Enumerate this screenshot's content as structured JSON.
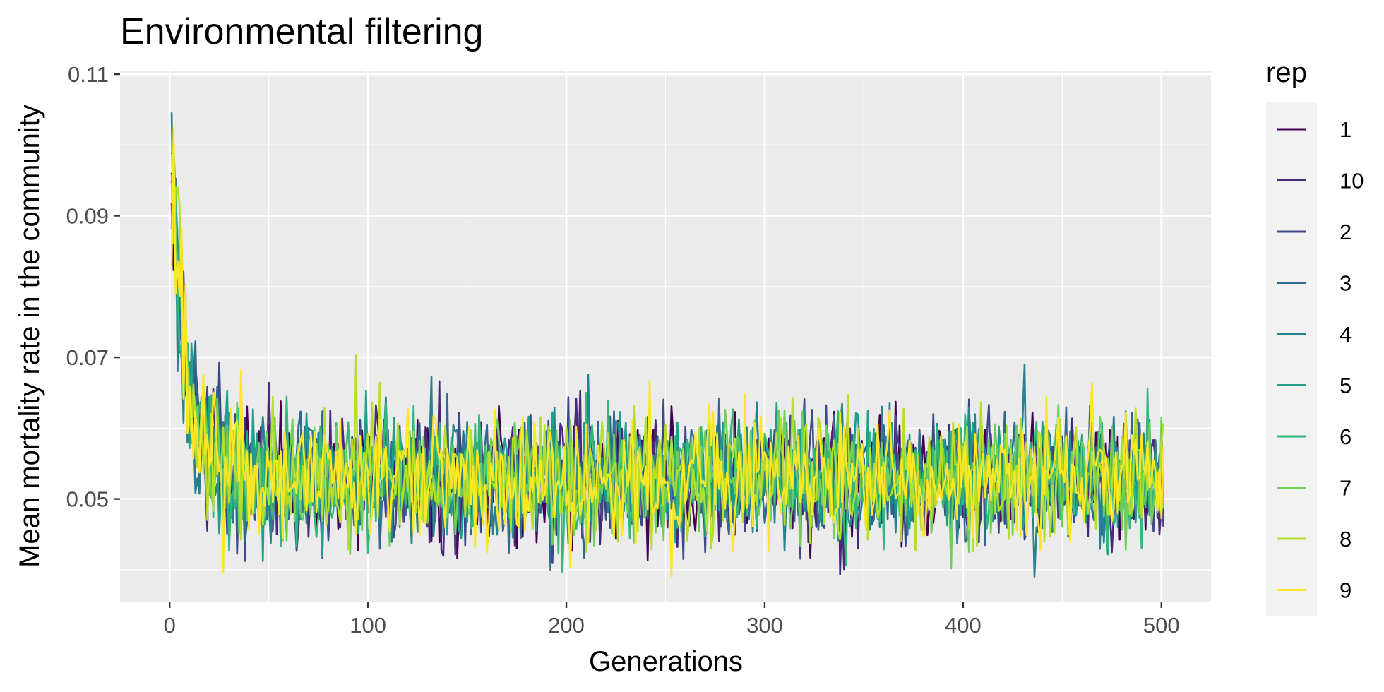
{
  "chart_data": {
    "type": "line",
    "title": "Environmental filtering",
    "xlabel": "Generations",
    "ylabel": "Mean mortality rate in the community",
    "xlim": [
      -25,
      525
    ],
    "ylim": [
      0.0355,
      0.1105
    ],
    "x_ticks": [
      0,
      100,
      200,
      300,
      400,
      500
    ],
    "x_tick_labels": [
      "0",
      "100",
      "200",
      "300",
      "400",
      "500"
    ],
    "y_ticks": [
      0.05,
      0.07,
      0.09,
      0.11
    ],
    "y_tick_labels": [
      "0.05",
      "0.07",
      "0.09",
      "0.11"
    ],
    "grid": true,
    "background": "#ebebeb",
    "legend": {
      "title": "rep",
      "position": "right",
      "entries": [
        "1",
        "10",
        "2",
        "3",
        "4",
        "5",
        "6",
        "7",
        "8",
        "9"
      ]
    },
    "series_summary": {
      "x_range": [
        1,
        501
      ],
      "initial_value": 0.096,
      "plateau_mean": 0.053,
      "approx_min": 0.039,
      "approx_max": 0.1065
    },
    "series": [
      {
        "name": "1",
        "color": "#440154"
      },
      {
        "name": "10",
        "color": "#482878"
      },
      {
        "name": "2",
        "color": "#3e4989"
      },
      {
        "name": "3",
        "color": "#31688e"
      },
      {
        "name": "4",
        "color": "#26828e"
      },
      {
        "name": "5",
        "color": "#1f9e89"
      },
      {
        "name": "6",
        "color": "#35b779"
      },
      {
        "name": "7",
        "color": "#6ece58"
      },
      {
        "name": "8",
        "color": "#b5de2b"
      },
      {
        "name": "9",
        "color": "#fde725"
      }
    ]
  }
}
